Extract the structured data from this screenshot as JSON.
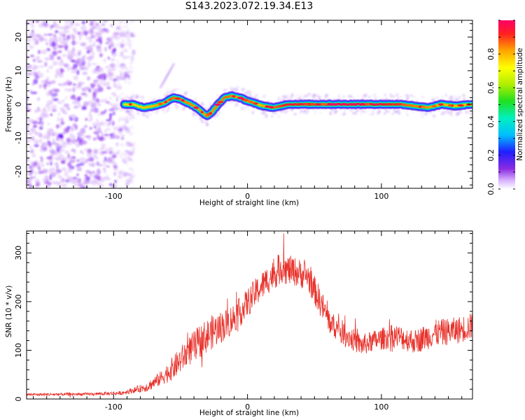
{
  "title": "S143.2023.072.19.34.E13",
  "colors": {
    "snr_line": "#e8312a",
    "background": "#ffffff",
    "axis": "#000000"
  },
  "chart_data": [
    {
      "type": "heatmap",
      "title": "S143.2023.072.19.34.E13",
      "xlabel": "Height of straight line (km)",
      "ylabel": "Frequency (Hz)",
      "xlim": [
        -165,
        168
      ],
      "ylim": [
        -25,
        25
      ],
      "xticks": [
        -100,
        0,
        100
      ],
      "xtick_labels": [
        "-100",
        "0",
        "100"
      ],
      "yticks": [
        -20,
        -10,
        0,
        10,
        20
      ],
      "ytick_labels": [
        "-20",
        "-10",
        "0",
        "10",
        "20"
      ],
      "colorbar": {
        "label": "Normalized spectral amplitude",
        "range": [
          0,
          1
        ],
        "ticks": [
          0.0,
          0.2,
          0.4,
          0.6,
          0.8
        ],
        "tick_labels": [
          "0.0",
          "0.2",
          "0.4",
          "0.6",
          "0.8"
        ]
      },
      "noise_region_x": [
        -165,
        -90
      ],
      "ridge": [
        {
          "x": -92,
          "y": 0.0
        },
        {
          "x": -85,
          "y": 0.0
        },
        {
          "x": -78,
          "y": -1.0
        },
        {
          "x": -70,
          "y": -0.5
        },
        {
          "x": -62,
          "y": 0.5
        },
        {
          "x": -55,
          "y": 2.0
        },
        {
          "x": -50,
          "y": 1.5
        },
        {
          "x": -45,
          "y": 0.5
        },
        {
          "x": -40,
          "y": -0.5
        },
        {
          "x": -35,
          "y": -2.0
        },
        {
          "x": -30,
          "y": -3.5
        },
        {
          "x": -26,
          "y": -2.0
        },
        {
          "x": -22,
          "y": 0.0
        },
        {
          "x": -17,
          "y": 2.0
        },
        {
          "x": -12,
          "y": 2.5
        },
        {
          "x": -6,
          "y": 2.0
        },
        {
          "x": 0,
          "y": 1.0
        },
        {
          "x": 6,
          "y": 0.2
        },
        {
          "x": 12,
          "y": -0.5
        },
        {
          "x": 20,
          "y": -1.0
        },
        {
          "x": 30,
          "y": 0.0
        },
        {
          "x": 45,
          "y": 0.0
        },
        {
          "x": 60,
          "y": 0.0
        },
        {
          "x": 80,
          "y": 0.0
        },
        {
          "x": 100,
          "y": 0.0
        },
        {
          "x": 115,
          "y": 0.0
        },
        {
          "x": 125,
          "y": -0.5
        },
        {
          "x": 135,
          "y": -1.0
        },
        {
          "x": 145,
          "y": 0.0
        },
        {
          "x": 155,
          "y": -0.5
        },
        {
          "x": 168,
          "y": 0.0
        }
      ],
      "ridge_amplitude": [
        {
          "x": -92,
          "a": 0.45
        },
        {
          "x": -70,
          "a": 0.55
        },
        {
          "x": -55,
          "a": 0.7
        },
        {
          "x": -30,
          "a": 0.6
        },
        {
          "x": -15,
          "a": 0.7
        },
        {
          "x": 10,
          "a": 0.55
        },
        {
          "x": 30,
          "a": 0.85
        },
        {
          "x": 60,
          "a": 1.0
        },
        {
          "x": 100,
          "a": 0.9
        },
        {
          "x": 120,
          "a": 0.7
        },
        {
          "x": 150,
          "a": 0.55
        },
        {
          "x": 168,
          "a": 0.5
        }
      ],
      "faint_streak": [
        {
          "x": -65,
          "y": 5.0
        },
        {
          "x": -55,
          "y": 12.0
        }
      ]
    },
    {
      "type": "line",
      "xlabel": "Height of straight line (km)",
      "ylabel": "SNR (10 * v/v)",
      "xlim": [
        -165,
        168
      ],
      "ylim": [
        0,
        345
      ],
      "xticks": [
        -100,
        0,
        100
      ],
      "xtick_labels": [
        "-100",
        "0",
        "100"
      ],
      "yticks": [
        0,
        100,
        200,
        300
      ],
      "ytick_labels": [
        "0",
        "100",
        "200",
        "300"
      ],
      "series": [
        {
          "name": "SNR",
          "envelope": [
            {
              "x": -165,
              "mean": 9,
              "noise": 3
            },
            {
              "x": -120,
              "mean": 10,
              "noise": 3
            },
            {
              "x": -95,
              "mean": 12,
              "noise": 4
            },
            {
              "x": -85,
              "mean": 18,
              "noise": 6
            },
            {
              "x": -75,
              "mean": 25,
              "noise": 10
            },
            {
              "x": -65,
              "mean": 42,
              "noise": 15
            },
            {
              "x": -55,
              "mean": 65,
              "noise": 25
            },
            {
              "x": -45,
              "mean": 95,
              "noise": 30
            },
            {
              "x": -35,
              "mean": 120,
              "noise": 35
            },
            {
              "x": -25,
              "mean": 140,
              "noise": 35
            },
            {
              "x": -15,
              "mean": 155,
              "noise": 32
            },
            {
              "x": -5,
              "mean": 180,
              "noise": 30
            },
            {
              "x": 5,
              "mean": 215,
              "noise": 30
            },
            {
              "x": 15,
              "mean": 245,
              "noise": 30
            },
            {
              "x": 25,
              "mean": 268,
              "noise": 32
            },
            {
              "x": 35,
              "mean": 262,
              "noise": 30
            },
            {
              "x": 45,
              "mean": 252,
              "noise": 30
            },
            {
              "x": 55,
              "mean": 195,
              "noise": 30
            },
            {
              "x": 62,
              "mean": 155,
              "noise": 25
            },
            {
              "x": 72,
              "mean": 135,
              "noise": 25
            },
            {
              "x": 85,
              "mean": 110,
              "noise": 22
            },
            {
              "x": 95,
              "mean": 120,
              "noise": 22
            },
            {
              "x": 110,
              "mean": 130,
              "noise": 25
            },
            {
              "x": 125,
              "mean": 118,
              "noise": 25
            },
            {
              "x": 140,
              "mean": 135,
              "noise": 28
            },
            {
              "x": 155,
              "mean": 140,
              "noise": 28
            },
            {
              "x": 168,
              "mean": 150,
              "noise": 28
            }
          ],
          "peak": {
            "x": 27,
            "y": 340
          }
        }
      ]
    }
  ]
}
